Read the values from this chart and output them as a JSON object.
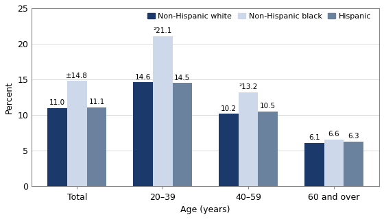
{
  "categories": [
    "Total",
    "20–39",
    "40–59",
    "60 and over"
  ],
  "series": {
    "Non-Hispanic white": [
      11.0,
      14.6,
      10.2,
      6.1
    ],
    "Non-Hispanic black": [
      14.8,
      21.1,
      13.2,
      6.6
    ],
    "Hispanic": [
      11.1,
      14.5,
      10.5,
      6.3
    ]
  },
  "annotations": {
    "Non-Hispanic white": [
      "11.0",
      "14.6",
      "10.2",
      "6.1"
    ],
    "Non-Hispanic black": [
      "±14.8",
      "²21.1",
      "²13.2",
      "6.6"
    ],
    "Hispanic": [
      "11.1",
      "14.5",
      "10.5",
      "6.3"
    ]
  },
  "colors": {
    "Non-Hispanic white": "#1b3a6b",
    "Non-Hispanic black": "#cdd8ea",
    "Hispanic": "#6b829e"
  },
  "ylabel": "Percent",
  "xlabel": "Age (years)",
  "ylim": [
    0,
    25
  ],
  "yticks": [
    0,
    5,
    10,
    15,
    20,
    25
  ],
  "bar_width": 0.23,
  "legend_labels": [
    "Non-Hispanic white",
    "Non-Hispanic black",
    "Hispanic"
  ],
  "annotation_fontsize": 7.5,
  "label_fontsize": 9,
  "tick_fontsize": 9,
  "legend_fontsize": 8
}
